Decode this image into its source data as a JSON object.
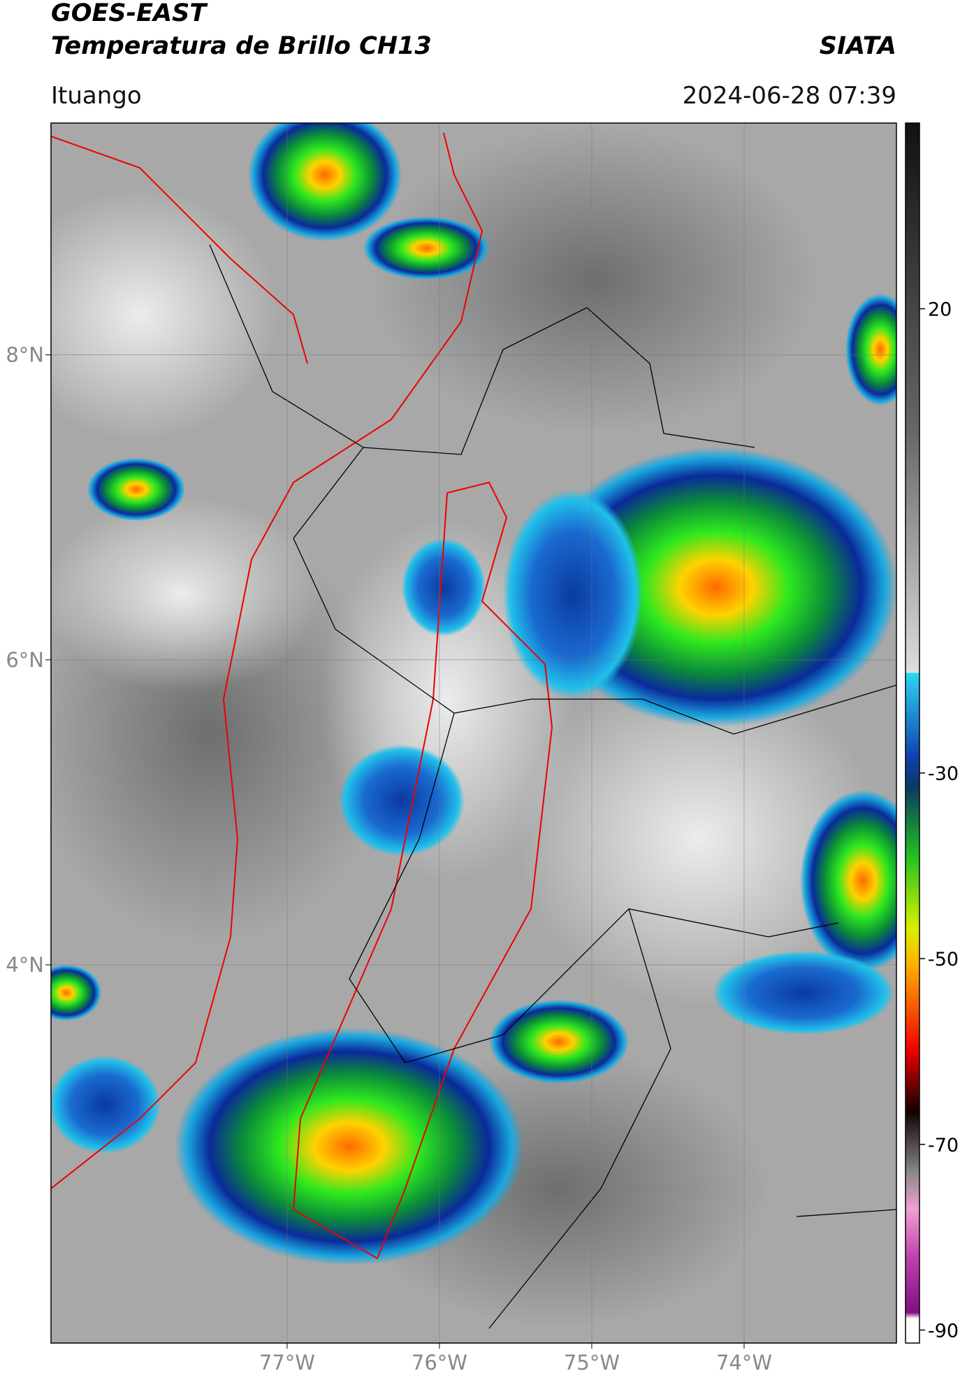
{
  "header": {
    "title": "GOES-EAST",
    "subtitle": "Temperatura de Brillo CH13",
    "brand": "SIATA",
    "location": "Ituango",
    "timestamp": "2024-06-28 07:39"
  },
  "map": {
    "xlim": [
      -78.55,
      -73
    ],
    "ylim": [
      1.52,
      9.52
    ],
    "xticks": [
      {
        "value": -77,
        "label": "77°W"
      },
      {
        "value": -76,
        "label": "76°W"
      },
      {
        "value": -75,
        "label": "75°W"
      },
      {
        "value": -74,
        "label": "74°W"
      }
    ],
    "yticks": [
      {
        "value": 8,
        "label": "8°N"
      },
      {
        "value": 6,
        "label": "6°N"
      },
      {
        "value": 4,
        "label": "4°N"
      }
    ],
    "grid": true
  },
  "colorbar": {
    "lim": [
      -91.4,
      40
    ],
    "ticks": [
      20,
      -30,
      -50,
      -70,
      -90
    ]
  }
}
